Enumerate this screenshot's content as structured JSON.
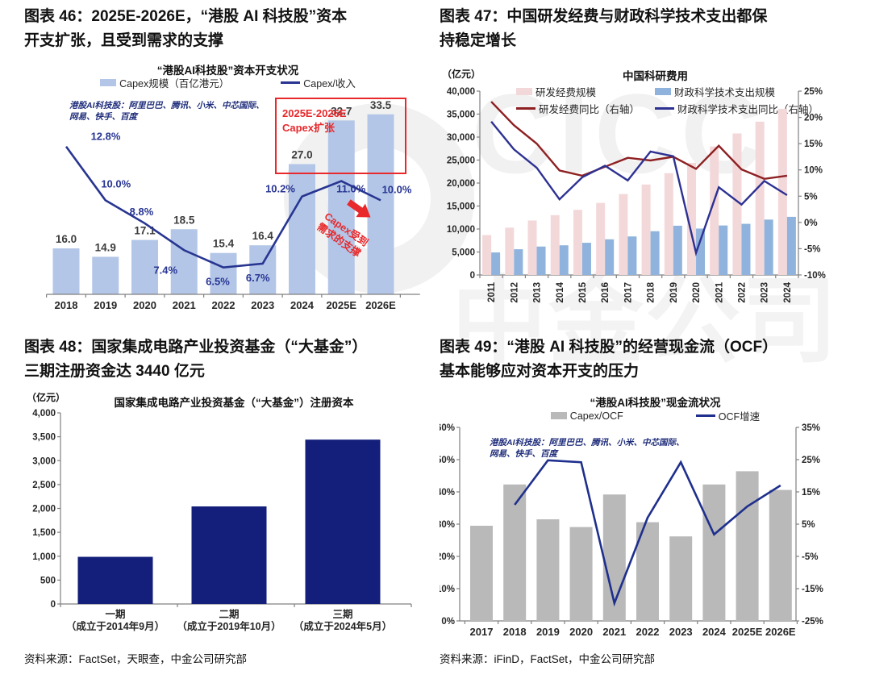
{
  "page": {
    "watermark": {
      "text_1": "CICC",
      "text_2": "中金公司"
    },
    "source_left": "资料来源：FactSet，天眼查，中金公司研究部",
    "source_right": "资料来源：iFinD，FactSet，中金公司研究部"
  },
  "colors": {
    "capex_bar": "#b3c6e7",
    "capex_line": "#283591",
    "annotation_red": "#e8282b",
    "rd_bar_pink": "#f3d8da",
    "fiscal_bar_blue": "#8fb3dc",
    "rd_line_dark_red": "#8e2022",
    "fiscal_line_navy": "#2d3192",
    "fund_bar_navy": "#131f7b",
    "ocf_bar_gray": "#b9b9b9",
    "ocf_line_navy": "#1e2f8d",
    "axis_gray": "#808080"
  },
  "chart_data": [
    {
      "id": "fig46",
      "type": "bar",
      "heading_lines": [
        "图表 46：2025E-2026E，“港股 AI 科技股”资本",
        "开支扩张，且受到需求的支撑"
      ],
      "title": "“港股AI科技股”资本开支状况",
      "note_lines": [
        "港股AI科技股：阿里巴巴、腾讯、小米、中芯国际、",
        "网易、快手、百度"
      ],
      "legend": [
        {
          "label": "Capex规模（百亿港元）",
          "swatch": "bar"
        },
        {
          "label": "Capex/收入",
          "swatch": "line"
        }
      ],
      "categories": [
        "2018",
        "2019",
        "2020",
        "2021",
        "2022",
        "2023",
        "2024",
        "2025E",
        "2026E"
      ],
      "series": [
        {
          "name": "Capex规模（百亿港元）",
          "type": "bar",
          "color": "#b3c6e7",
          "values": [
            16.0,
            14.9,
            17.1,
            18.5,
            15.4,
            16.4,
            27.0,
            32.7,
            33.5
          ]
        },
        {
          "name": "Capex/收入",
          "type": "line",
          "color": "#283591",
          "unit": "%",
          "values": [
            12.8,
            10.0,
            8.8,
            7.4,
            6.5,
            6.7,
            10.2,
            11.0,
            10.0
          ]
        }
      ],
      "annotations": {
        "box_label_lines": [
          "2025E-2026E",
          "Capex扩张"
        ],
        "arrow_label_lines": [
          "Capex受到",
          "需求的支撑"
        ],
        "color": "#e8282b"
      }
    },
    {
      "id": "fig47",
      "type": "bar",
      "heading_lines": [
        "图表 47：中国研发经费与财政科学技术支出都保",
        "持稳定增长"
      ],
      "title": "中国科研费用",
      "unit_left": "（亿元）",
      "left_axis": {
        "min": 0,
        "max": 40000,
        "step": 5000
      },
      "right_axis": {
        "min": -10,
        "max": 25,
        "step": 5,
        "unit": "%"
      },
      "legend": [
        {
          "label": "研发经费规模",
          "swatch": "bar"
        },
        {
          "label": "财政科学技术支出规模",
          "swatch": "bar"
        },
        {
          "label": "研发经费同比（右轴）",
          "swatch": "line"
        },
        {
          "label": "财政科学技术支出同比（右轴）",
          "swatch": "line"
        }
      ],
      "categories": [
        "2011",
        "2012",
        "2013",
        "2014",
        "2015",
        "2016",
        "2017",
        "2018",
        "2019",
        "2020",
        "2021",
        "2022",
        "2023",
        "2024"
      ],
      "series": [
        {
          "name": "研发经费规模",
          "type": "bar",
          "color": "#f3d8da",
          "values": [
            8687,
            10298,
            11847,
            13016,
            14170,
            15677,
            17606,
            19678,
            22144,
            24393,
            27956,
            30783,
            33357,
            36130
          ]
        },
        {
          "name": "财政科学技术支出规模",
          "type": "bar",
          "color": "#8fb3dc",
          "values": [
            4902,
            5600,
            6184,
            6454,
            7006,
            7761,
            8383,
            9518,
            10717,
            10095,
            10767,
            11128,
            12050,
            12650
          ]
        },
        {
          "name": "研发经费同比（右轴）",
          "type": "line",
          "axis": "right",
          "color": "#8e2022",
          "unit": "%",
          "values": [
            23.0,
            18.5,
            15.0,
            9.9,
            8.9,
            10.6,
            12.3,
            11.8,
            12.5,
            10.2,
            14.6,
            10.1,
            8.3,
            8.9
          ]
        },
        {
          "name": "财政科学技术支出同比（右轴）",
          "type": "line",
          "axis": "right",
          "color": "#2d3192",
          "unit": "%",
          "values": [
            19.2,
            13.9,
            10.4,
            4.4,
            8.6,
            10.8,
            8.0,
            13.5,
            12.6,
            -5.8,
            6.7,
            3.4,
            7.9,
            5.2
          ]
        }
      ]
    },
    {
      "id": "fig48",
      "type": "bar",
      "heading_lines": [
        "图表 48：国家集成电路产业投资基金（“大基金”）",
        "三期注册资金达 3440 亿元"
      ],
      "title": "国家集成电路产业投资基金（“大基金”）注册资本",
      "unit_left": "（亿元）",
      "left_axis": {
        "min": 0,
        "max": 4000,
        "step": 500
      },
      "categories": [
        [
          "一期",
          "（成立于2014年9月）"
        ],
        [
          "二期",
          "（成立于2019年10月）"
        ],
        [
          "三期",
          "（成立于2024年5月）"
        ]
      ],
      "series": [
        {
          "name": "注册资本",
          "type": "bar",
          "color": "#131f7b",
          "values": [
            987,
            2042,
            3440
          ]
        }
      ]
    },
    {
      "id": "fig49",
      "type": "bar",
      "heading_lines": [
        "图表 49：“港股 AI 科技股”的经营现金流（OCF）",
        "基本能够应对资本开支的压力"
      ],
      "title": "“港股AI科技股”现金流状况",
      "note_lines": [
        "港股AI科技股：阿里巴巴、腾讯、小米、中芯国际、",
        "网易、快手、百度"
      ],
      "left_axis": {
        "min": 0,
        "max": 60,
        "step": 10,
        "unit": "%"
      },
      "right_axis": {
        "min": -25,
        "max": 35,
        "step": 10,
        "unit": "%"
      },
      "legend": [
        {
          "label": "Capex/OCF",
          "swatch": "bar"
        },
        {
          "label": "OCF增速",
          "swatch": "line"
        }
      ],
      "categories": [
        "2017",
        "2018",
        "2019",
        "2020",
        "2021",
        "2022",
        "2023",
        "2024",
        "2025E",
        "2026E"
      ],
      "series": [
        {
          "name": "Capex/OCF",
          "type": "bar",
          "color": "#b9b9b9",
          "unit": "%",
          "values": [
            29.5,
            42.3,
            31.5,
            29.1,
            39.2,
            30.6,
            26.2,
            42.3,
            46.4,
            40.6
          ]
        },
        {
          "name": "OCF增速",
          "type": "line",
          "axis": "right",
          "color": "#1e2f8d",
          "unit": "%",
          "values": [
            null,
            11.0,
            24.8,
            24.2,
            -19.5,
            7.0,
            24.2,
            1.8,
            10.5,
            17.0
          ]
        }
      ]
    }
  ]
}
